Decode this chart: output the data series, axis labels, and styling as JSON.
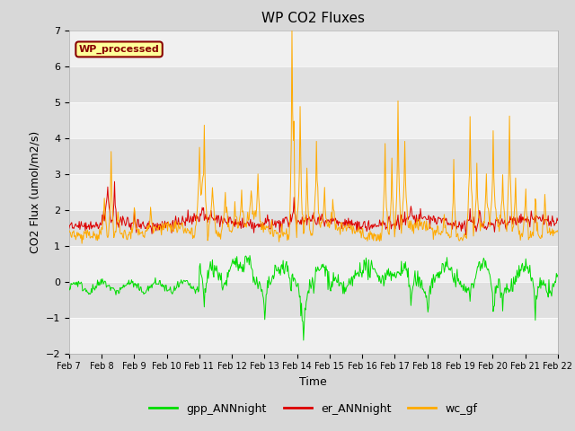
{
  "title": "WP CO2 Fluxes",
  "xlabel": "Time",
  "ylabel": "CO2 Flux (umol/m2/s)",
  "ylim": [
    -2.0,
    7.0
  ],
  "yticks": [
    -2.0,
    -1.0,
    0.0,
    1.0,
    2.0,
    3.0,
    4.0,
    5.0,
    6.0,
    7.0
  ],
  "date_labels": [
    "Feb 7",
    "Feb 8",
    "Feb 9",
    "Feb 10",
    "Feb 11",
    "Feb 12",
    "Feb 13",
    "Feb 14",
    "Feb 15",
    "Feb 16",
    "Feb 17",
    "Feb 18",
    "Feb 19",
    "Feb 20",
    "Feb 21",
    "Feb 22"
  ],
  "n_points": 720,
  "gpp_color": "#00dd00",
  "er_color": "#dd0000",
  "wc_color": "#ffaa00",
  "legend_label": "WP_processed",
  "legend_facecolor": "#ffff99",
  "legend_edgecolor": "#880000",
  "band_colors": [
    "#f0f0f0",
    "#e0e0e0"
  ],
  "fig_facecolor": "#d8d8d8",
  "axes_facecolor": "#f0f0f0",
  "series_names": [
    "gpp_ANNnight",
    "er_ANNnight",
    "wc_gf"
  ],
  "linewidth": 0.7
}
